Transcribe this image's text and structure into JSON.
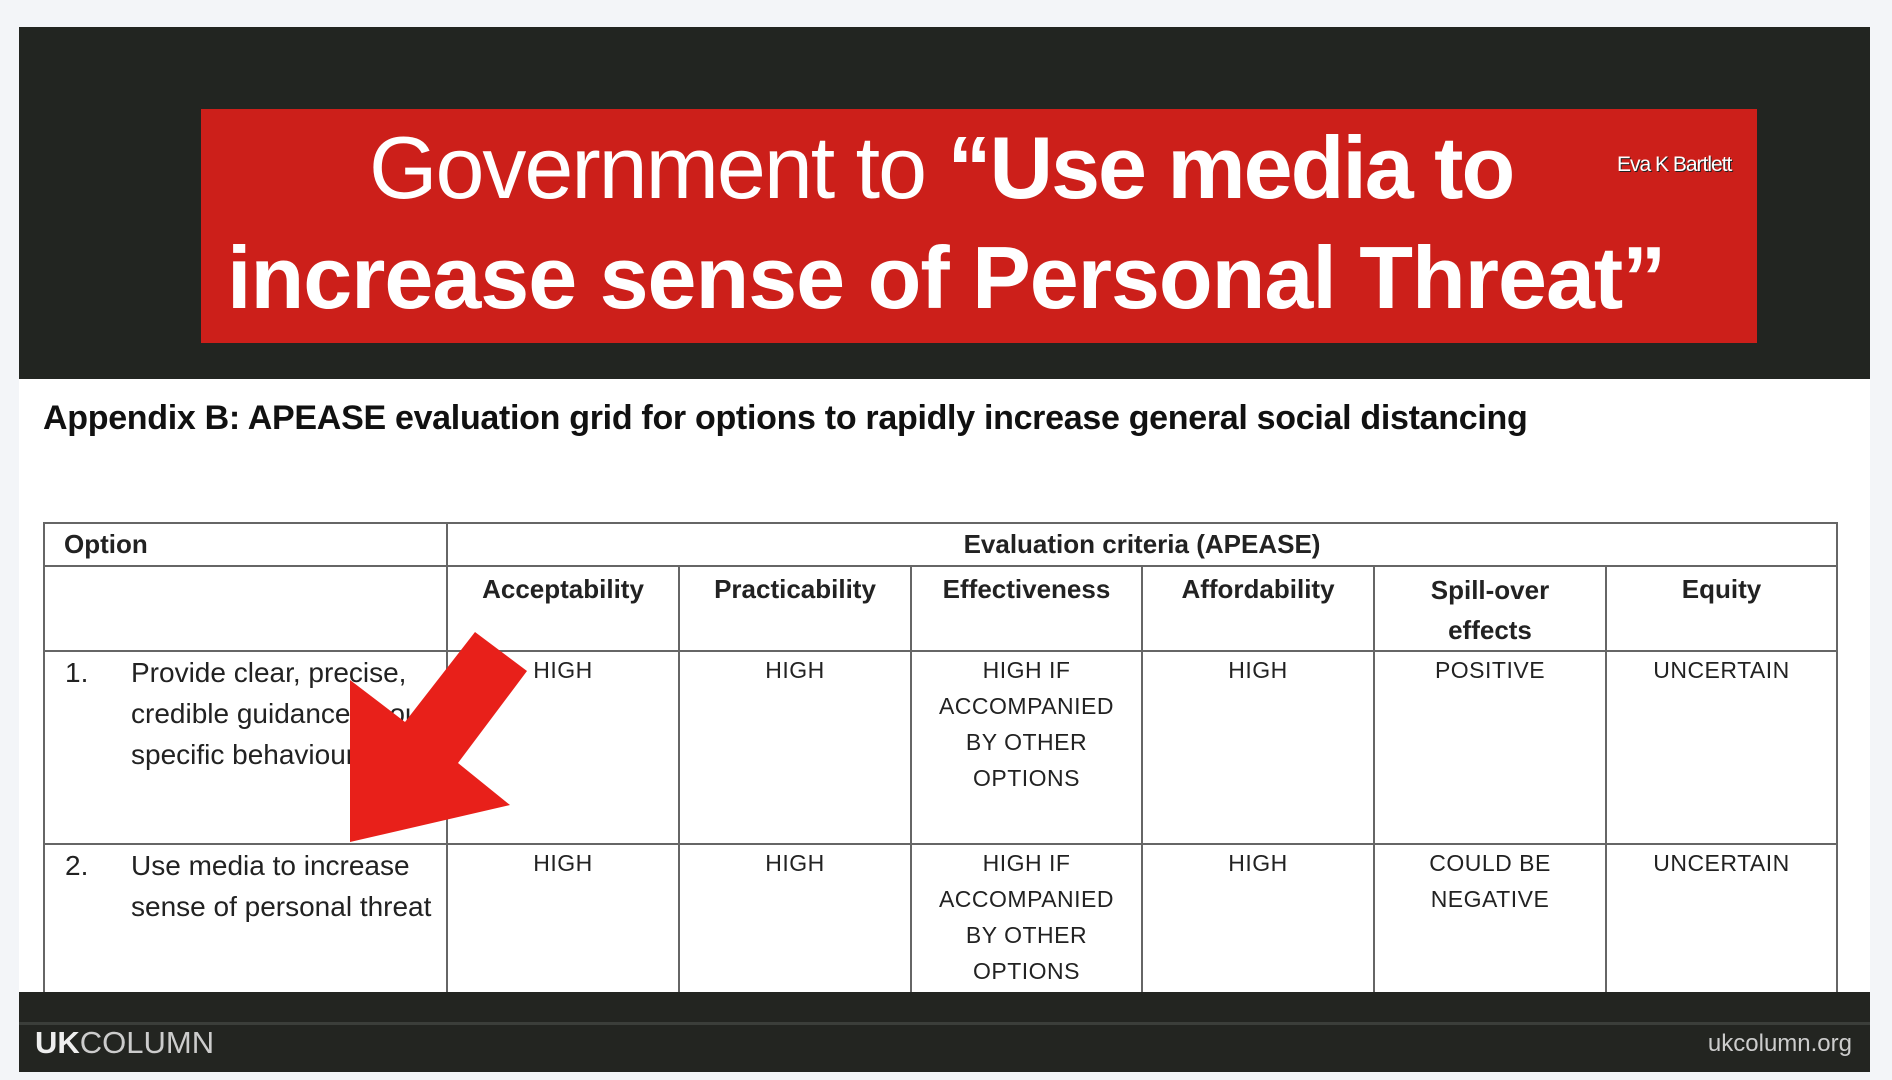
{
  "banner": {
    "title_plain": "Government to ",
    "title_bold_1": "“Use media to",
    "title_bold_2": "increase sense of Personal Threat”",
    "credit": "Eva K Bartlett",
    "color": "#cc1f1a"
  },
  "document": {
    "heading": "Appendix B: APEASE evaluation grid for options to rapidly increase general social distancing",
    "table": {
      "option_header": "Option",
      "criteria_header": "Evaluation criteria (APEASE)",
      "columns": [
        "Acceptability",
        "Practicability",
        "Effectiveness",
        "Affordability",
        "Spill-over effects",
        "Equity"
      ],
      "rows": [
        {
          "num": "1.",
          "option": "Provide clear, precise, credible guidance about specific behaviours",
          "values": [
            "HIGH",
            "HIGH",
            "HIGH IF ACCOMPANIED BY OTHER OPTIONS",
            "HIGH",
            "POSITIVE",
            "UNCERTAIN"
          ]
        },
        {
          "num": "2.",
          "option": "Use media to increase sense of personal threat",
          "values": [
            "HIGH",
            "HIGH",
            "HIGH IF ACCOMPANIED BY OTHER OPTIONS",
            "HIGH",
            "COULD BE NEGATIVE",
            "UNCERTAIN"
          ]
        }
      ]
    }
  },
  "annotation": {
    "icon": "red-arrow-icon",
    "color": "#e8201a"
  },
  "footer": {
    "brand_bold": "UK",
    "brand_light": "COLUMN",
    "url": "ukcolumn.org"
  }
}
